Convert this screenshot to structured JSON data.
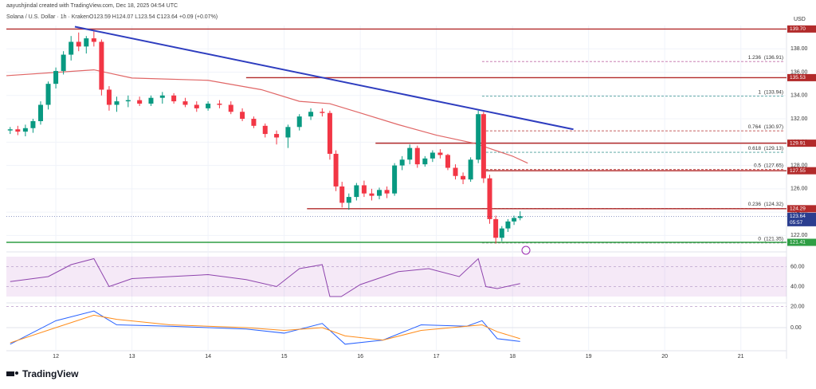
{
  "header": {
    "credit": "aayushjindal created with TradingView.com, Dec 18, 2025 04:54 UTC",
    "symbol": "Solana / U.S. Dollar · 1h · Kraken",
    "ohlc": "O123.59 H124.07 L123.54 C123.64 +0.09 (+0.07%)"
  },
  "chart_data": {
    "type": "candlestick",
    "currency": "USD",
    "xlim": [
      11.35,
      21.6
    ],
    "xticks": [
      12,
      13,
      14,
      15,
      16,
      17,
      18,
      19,
      20,
      21
    ],
    "ylim": [
      121,
      140
    ],
    "yticks": [
      {
        "value": 138,
        "label": "138.00"
      },
      {
        "value": 136,
        "label": "136.00"
      },
      {
        "value": 134,
        "label": "134.00"
      },
      {
        "value": 132,
        "label": "132.00"
      },
      {
        "value": 130,
        "label": "130.00"
      },
      {
        "value": 128,
        "label": "128.00"
      },
      {
        "value": 126,
        "label": "126.00"
      },
      {
        "value": 124,
        "label": "124.00"
      },
      {
        "value": 122,
        "label": "122.00"
      }
    ],
    "candles": [
      [
        11.4,
        131,
        131.3,
        130.7,
        131.1
      ],
      [
        11.5,
        131.1,
        131.4,
        130.6,
        130.9
      ],
      [
        11.6,
        130.9,
        131.5,
        130.5,
        131.2
      ],
      [
        11.7,
        131.2,
        132,
        130.8,
        131.8
      ],
      [
        11.8,
        131.8,
        133.5,
        131.5,
        133.2
      ],
      [
        11.9,
        133.2,
        135.2,
        132.8,
        135
      ],
      [
        12.0,
        135,
        136.4,
        134.6,
        136.1
      ],
      [
        12.1,
        136.1,
        137.8,
        135.8,
        137.5
      ],
      [
        12.2,
        137.5,
        139.1,
        137,
        138.6
      ],
      [
        12.3,
        138.6,
        139.4,
        137.8,
        138.2
      ],
      [
        12.4,
        138.2,
        139.1,
        137.6,
        138.9
      ],
      [
        12.5,
        138.9,
        139.6,
        138.2,
        138.6
      ],
      [
        12.6,
        138.6,
        138.8,
        134,
        134.5
      ],
      [
        12.7,
        134.5,
        134.8,
        132.7,
        133.2
      ],
      [
        12.8,
        133.2,
        133.9,
        132.6,
        133.5
      ],
      [
        12.95,
        133.5,
        134,
        133,
        133.6
      ],
      [
        13.1,
        133.6,
        133.9,
        133.1,
        133.3
      ],
      [
        13.25,
        133.3,
        134,
        133.1,
        133.8
      ],
      [
        13.4,
        133.8,
        134.3,
        133.3,
        134
      ],
      [
        13.55,
        134,
        134.2,
        133.3,
        133.5
      ],
      [
        13.7,
        133.5,
        133.8,
        133,
        133.2
      ],
      [
        13.85,
        133.2,
        133.5,
        132.6,
        132.9
      ],
      [
        14.0,
        132.9,
        133.5,
        132.7,
        133.3
      ],
      [
        14.15,
        133.3,
        133.6,
        132.9,
        133.2
      ],
      [
        14.3,
        133.2,
        133.5,
        132.4,
        132.6
      ],
      [
        14.45,
        132.6,
        132.9,
        131.8,
        132
      ],
      [
        14.6,
        132,
        132.2,
        131.2,
        131.4
      ],
      [
        14.75,
        131.4,
        131.6,
        130.4,
        130.7
      ],
      [
        14.9,
        130.7,
        131,
        129.8,
        130.4
      ],
      [
        15.05,
        130.4,
        131.5,
        129.5,
        131.3
      ],
      [
        15.2,
        131.3,
        132.4,
        131,
        132.2
      ],
      [
        15.35,
        132.2,
        132.9,
        131.9,
        132.6
      ],
      [
        15.5,
        132.6,
        132.9,
        132.2,
        132.5
      ],
      [
        15.6,
        132.5,
        132.7,
        128.5,
        129
      ],
      [
        15.68,
        129,
        129.3,
        125.8,
        126.2
      ],
      [
        15.76,
        126.2,
        126.6,
        124.4,
        124.8
      ],
      [
        15.85,
        124.8,
        125.6,
        124.2,
        125.3
      ],
      [
        15.95,
        125.3,
        126.5,
        125,
        126.3
      ],
      [
        16.05,
        126.3,
        126.7,
        125.3,
        125.6
      ],
      [
        16.15,
        125.6,
        126,
        125,
        125.4
      ],
      [
        16.25,
        125.4,
        126.1,
        125.1,
        125.9
      ],
      [
        16.35,
        125.9,
        126.2,
        125.2,
        125.6
      ],
      [
        16.45,
        125.6,
        128.2,
        125.4,
        128
      ],
      [
        16.55,
        128,
        128.8,
        127.6,
        128.5
      ],
      [
        16.65,
        128.5,
        129.8,
        128.1,
        129.5
      ],
      [
        16.75,
        129.5,
        129.7,
        127.8,
        128.1
      ],
      [
        16.85,
        128.1,
        128.8,
        127.9,
        128.6
      ],
      [
        16.95,
        128.6,
        129.3,
        128.3,
        129.1
      ],
      [
        17.05,
        129.1,
        129.4,
        128.6,
        128.9
      ],
      [
        17.15,
        128.9,
        129,
        127.6,
        127.8
      ],
      [
        17.25,
        127.8,
        128.1,
        126.8,
        127.1
      ],
      [
        17.35,
        127.1,
        127.4,
        126.4,
        126.8
      ],
      [
        17.45,
        126.8,
        128.7,
        126.6,
        128.5
      ],
      [
        17.55,
        128.5,
        132.7,
        128.2,
        132.4
      ],
      [
        17.62,
        132.4,
        132.6,
        126.5,
        126.9
      ],
      [
        17.7,
        126.9,
        127.2,
        123,
        123.4
      ],
      [
        17.78,
        123.4,
        123.7,
        121.3,
        121.8
      ],
      [
        17.86,
        121.8,
        122.8,
        121.5,
        122.6
      ],
      [
        17.94,
        122.6,
        123.4,
        122.3,
        123.2
      ],
      [
        18.02,
        123.2,
        123.7,
        122.9,
        123.5
      ],
      [
        18.1,
        123.5,
        124.07,
        123.3,
        123.64
      ]
    ],
    "up_color": "#089981",
    "down_color": "#f23645",
    "moving_average": {
      "color": "#e06666",
      "t": [
        11.35,
        12.5,
        13,
        14,
        14.7,
        15.2,
        15.6,
        16,
        16.5,
        17,
        17.5,
        18,
        18.2
      ],
      "v": [
        135.7,
        136.2,
        135.5,
        135.3,
        134.5,
        133.5,
        133.3,
        132.5,
        131.5,
        130.6,
        129.9,
        128.8,
        128.2
      ]
    },
    "trend_line": {
      "color": "#2e3dbf",
      "t": [
        12.25,
        18.8
      ],
      "v": [
        139.9,
        131.1
      ]
    },
    "levels": [
      {
        "value": 139.7,
        "label": "139.70",
        "from": 11.35,
        "color": "#b22a2a"
      },
      {
        "value": 135.53,
        "label": "135.53",
        "from": 14.5,
        "color": "#b22a2a"
      },
      {
        "value": 129.91,
        "label": "129.91",
        "from": 16.2,
        "color": "#b22a2a"
      },
      {
        "value": 127.55,
        "label": "127.55",
        "from": 17.6,
        "color": "#b22a2a"
      },
      {
        "value": 124.29,
        "label": "124.29",
        "from": 15.3,
        "color": "#b22a2a"
      },
      {
        "value": 121.41,
        "label": "121.41",
        "from": 11.35,
        "color": "#2e9e44"
      }
    ],
    "last_price": {
      "value": 123.64,
      "label": "123.64",
      "countdown": "05:57",
      "color": "#2a3d8f"
    },
    "fib_levels": [
      {
        "ratio": "1.236",
        "value": 136.91,
        "label": "(136.91)",
        "color": "#c06ca8"
      },
      {
        "ratio": "1",
        "value": 133.94,
        "label": "(133.94)",
        "color": "#4a9e9a"
      },
      {
        "ratio": "0.764",
        "value": 130.97,
        "label": "(130.97)",
        "color": "#b22a2a"
      },
      {
        "ratio": "0.618",
        "value": 129.13,
        "label": "(129.13)",
        "color": "#4a9e9a"
      },
      {
        "ratio": "0.5",
        "value": 127.65,
        "label": "(127.65)",
        "color": "#b22a2a"
      },
      {
        "ratio": "0.236",
        "value": 124.32,
        "label": "(124.32)",
        "color": "#888888"
      },
      {
        "ratio": "0",
        "value": 121.35,
        "label": "(121.35)",
        "color": "#888888"
      }
    ],
    "fib_from": 17.6,
    "rsi": {
      "ylim": [
        20,
        80
      ],
      "band": [
        30,
        70
      ],
      "yticks": [
        {
          "value": 60,
          "label": "60.00"
        },
        {
          "value": 40,
          "label": "40.00"
        },
        {
          "value": 20,
          "label": "20.00"
        }
      ],
      "color": "#8e44ad",
      "t": [
        11.4,
        11.9,
        12.2,
        12.5,
        12.7,
        13,
        13.5,
        14,
        14.5,
        14.9,
        15.2,
        15.5,
        15.6,
        15.75,
        16,
        16.5,
        16.9,
        17.3,
        17.55,
        17.65,
        17.8,
        18.1
      ],
      "v": [
        45,
        50,
        62,
        68,
        40,
        48,
        50,
        52,
        47,
        40,
        58,
        62,
        30,
        30,
        42,
        55,
        58,
        50,
        68,
        40,
        38,
        43
      ]
    },
    "macd": {
      "ylim": [
        -1.5,
        1.5
      ],
      "yticks": [
        {
          "value": 0,
          "label": "0.00"
        }
      ],
      "t": [
        11.4,
        12,
        12.5,
        12.8,
        13.5,
        14.5,
        15,
        15.5,
        15.8,
        16.3,
        16.8,
        17.4,
        17.6,
        17.8,
        18.1
      ],
      "macd": {
        "color": "#2962ff",
        "v": [
          -1.2,
          0.5,
          1.2,
          0.2,
          0.1,
          -0.1,
          -0.4,
          0.3,
          -1.2,
          -0.9,
          0.2,
          0.1,
          0.5,
          -0.8,
          -1.0
        ]
      },
      "signal": {
        "color": "#ff8c1a",
        "v": [
          -1.1,
          0,
          0.9,
          0.6,
          0.2,
          0,
          -0.2,
          0,
          -0.6,
          -0.9,
          -0.2,
          0.1,
          0.2,
          -0.3,
          -0.8
        ]
      }
    }
  },
  "footer": {
    "brand": "TradingView"
  }
}
